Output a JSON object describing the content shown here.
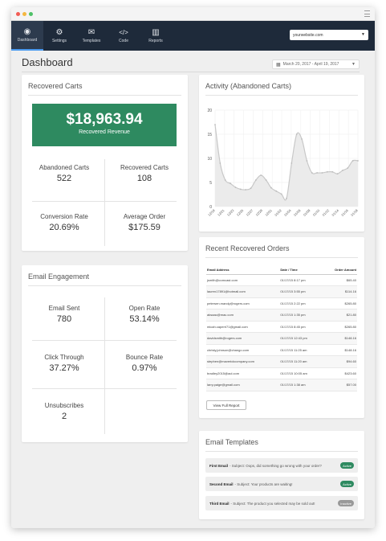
{
  "colors": {
    "nav_bg": "#1e2a3a",
    "accent_green": "#2e8a60",
    "chart_line": "#c8c8c8",
    "chart_fill": "#ebebeb"
  },
  "nav": {
    "items": [
      {
        "label": "Dashboard",
        "icon": "dashboard-gauge-icon",
        "glyph": "◉"
      },
      {
        "label": "Settings",
        "icon": "gears-icon",
        "glyph": "⚙"
      },
      {
        "label": "Templates",
        "icon": "envelope-icon",
        "glyph": "✉"
      },
      {
        "label": "Code",
        "icon": "code-icon",
        "glyph": "</>"
      },
      {
        "label": "Reports",
        "icon": "bar-chart-icon",
        "glyph": "▥"
      }
    ],
    "site_select": "yourwebsite.com"
  },
  "page": {
    "title": "Dashboard",
    "date_range": "March 20, 2017 - April 19, 2017"
  },
  "recovered_carts": {
    "title": "Recovered Carts",
    "revenue_value": "$18,963.94",
    "revenue_label": "Recovered Revenue",
    "stats": [
      {
        "label": "Abandoned Carts",
        "value": "522"
      },
      {
        "label": "Recovered Carts",
        "value": "108"
      },
      {
        "label": "Conversion Rate",
        "value": "20.69%"
      },
      {
        "label": "Average Order",
        "value": "$175.59"
      }
    ]
  },
  "email_engagement": {
    "title": "Email Engagement",
    "stats": [
      {
        "label": "Email Sent",
        "value": "780"
      },
      {
        "label": "Open Rate",
        "value": "53.14%"
      },
      {
        "label": "Click Through",
        "value": "37.27%"
      },
      {
        "label": "Bounce Rate",
        "value": "0.97%"
      },
      {
        "label": "Unsubscribes",
        "value": "2"
      }
    ]
  },
  "activity": {
    "title": "Activity (Abandoned Carts)"
  },
  "chart_data": {
    "type": "area",
    "title": "Activity (Abandoned Carts)",
    "xlabel": "",
    "ylabel": "",
    "x_ticks": [
      "12/19",
      "12/21",
      "12/23",
      "12/25",
      "12/27",
      "12/29",
      "12/31",
      "01/02",
      "01/04",
      "01/06",
      "01/08",
      "01/10",
      "01/12",
      "01/14",
      "01/16",
      "01/18"
    ],
    "x": [
      0,
      0.5,
      1,
      1.5,
      2,
      2.5,
      3,
      3.5,
      4,
      4.5,
      5,
      5.5,
      6,
      6.5,
      7,
      7.5,
      8,
      8.5,
      9,
      9.5,
      10,
      10.5,
      11,
      11.5,
      12,
      12.5,
      13,
      13.5,
      14
    ],
    "values": [
      17,
      9,
      5.5,
      4.8,
      4,
      3.6,
      3.5,
      3.8,
      5.5,
      6.5,
      5.5,
      3.9,
      3.2,
      2.6,
      1.7,
      9,
      15,
      14,
      9.5,
      7,
      7,
      7,
      7.2,
      7.2,
      6.8,
      7.5,
      8,
      9.5,
      9.5
    ],
    "ylim": [
      0,
      20
    ],
    "y_ticks": [
      0,
      5,
      10,
      15,
      20
    ],
    "grid": true,
    "legend": "none"
  },
  "orders": {
    "title": "Recent Recovered Orders",
    "columns": [
      "Email Address",
      "Date / Time",
      "Order Amount"
    ],
    "rows": [
      [
        "jsmith@comcast.com",
        "01/17/15 8:17 pm",
        "$65.40"
      ],
      [
        "lauren17891@hotmail.com",
        "01/17/15 3:55 pm",
        "$114.16"
      ],
      [
        "petersen.mandy@rogers.com",
        "01/17/15 2:22 pm",
        "$265.80"
      ],
      [
        "aksaac@mac.com",
        "01/17/15 1:35 pm",
        "$21.80"
      ],
      [
        "micah.caperri71@gmail.com",
        "01/17/15 8:45 pm",
        "$265.80"
      ],
      [
        "davidsmith@rogers.com",
        "01/17/15 12:43 pm",
        "$148.16"
      ],
      [
        "christy.johnson@chango.com",
        "01/17/15 11:25 am",
        "$148.16"
      ],
      [
        "stephen@maverickcompany.com",
        "01/17/15 11:20 am",
        "$94.60"
      ],
      [
        "bradley2015@aol.com",
        "01/17/15 10:05 am",
        "$423.60"
      ],
      [
        "larry.paige@gmail.com",
        "01/17/15 1:38 am",
        "$57.00"
      ]
    ],
    "button": "View Full Report"
  },
  "templates": {
    "title": "Email Templates",
    "items": [
      {
        "name": "First Email",
        "subject": " - Subject: Oops, did something go wrong with your order?",
        "status": "Active",
        "status_type": "active"
      },
      {
        "name": "Second Email",
        "subject": " - Subject: Your products are waiting!",
        "status": "Active",
        "status_type": "active"
      },
      {
        "name": "Third Email",
        "subject": " - Subject: The product you selected may be sold out!",
        "status": "Inactive",
        "status_type": "inactive"
      }
    ]
  }
}
